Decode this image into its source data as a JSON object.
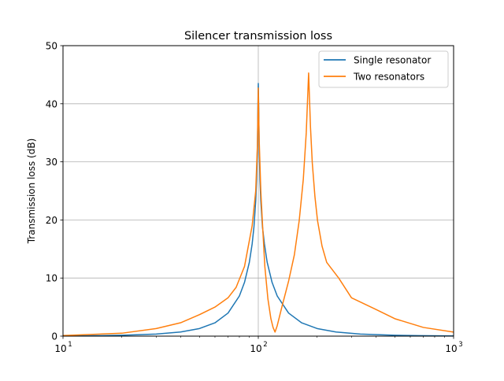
{
  "chart_data": {
    "type": "line",
    "title": "Silencer transmission loss",
    "xlabel": "",
    "ylabel": "Transmission loss (dB)",
    "xscale": "log",
    "xlim": [
      10,
      1000
    ],
    "ylim": [
      0,
      50
    ],
    "yticks": [
      0,
      10,
      20,
      30,
      40,
      50
    ],
    "xticks": [
      10,
      100,
      1000
    ],
    "xtick_labels": [
      {
        "base": "10",
        "exp": "1"
      },
      {
        "base": "10",
        "exp": "2"
      },
      {
        "base": "10",
        "exp": "3"
      }
    ],
    "grid": true,
    "legend_placement": "top-right",
    "series": [
      {
        "name": "Single resonator",
        "color": "#1f77b4",
        "x": [
          10,
          15,
          20,
          30,
          40,
          50,
          60,
          70,
          80,
          85,
          90,
          93,
          95,
          97,
          98,
          99,
          99.5,
          100,
          100.5,
          101,
          102,
          103,
          105,
          107.5,
          111,
          117.6,
          125,
          142.9,
          166.7,
          200,
          250,
          333,
          500,
          667,
          1000
        ],
        "y": [
          0.035,
          0.08,
          0.147,
          0.358,
          0.718,
          1.31,
          2.29,
          3.97,
          6.91,
          9.26,
          12.73,
          15.86,
          18.82,
          23.3,
          26.9,
          32.9,
          39.0,
          43.5,
          39.0,
          32.9,
          26.9,
          23.3,
          18.82,
          15.86,
          12.73,
          9.26,
          6.91,
          3.97,
          2.29,
          1.31,
          0.718,
          0.358,
          0.147,
          0.08,
          0.035
        ]
      },
      {
        "name": "Two resonators",
        "color": "#ff7f0e",
        "x": [
          10,
          20,
          30,
          40,
          50,
          60,
          70,
          77,
          85,
          93,
          97,
          99,
          100,
          101,
          103,
          105,
          108,
          112,
          116,
          119,
          121.8,
          125,
          132,
          143,
          153,
          162,
          170,
          176,
          181,
          185,
          189,
          195,
          201,
          212,
          224,
          258,
          300,
          400,
          500,
          700,
          1000
        ],
        "y": [
          0.1,
          0.5,
          1.3,
          2.3,
          3.7,
          5.0,
          6.6,
          8.4,
          12.0,
          19.0,
          25.0,
          33.0,
          42.7,
          34.0,
          25.0,
          19.5,
          12.0,
          6.4,
          3.0,
          1.5,
          0.7,
          1.8,
          5.0,
          9.5,
          14.0,
          19.9,
          27.0,
          35.0,
          45.3,
          36.0,
          29.8,
          24.0,
          19.9,
          15.5,
          12.7,
          10.0,
          6.6,
          4.6,
          3.0,
          1.5,
          0.7
        ]
      }
    ]
  }
}
